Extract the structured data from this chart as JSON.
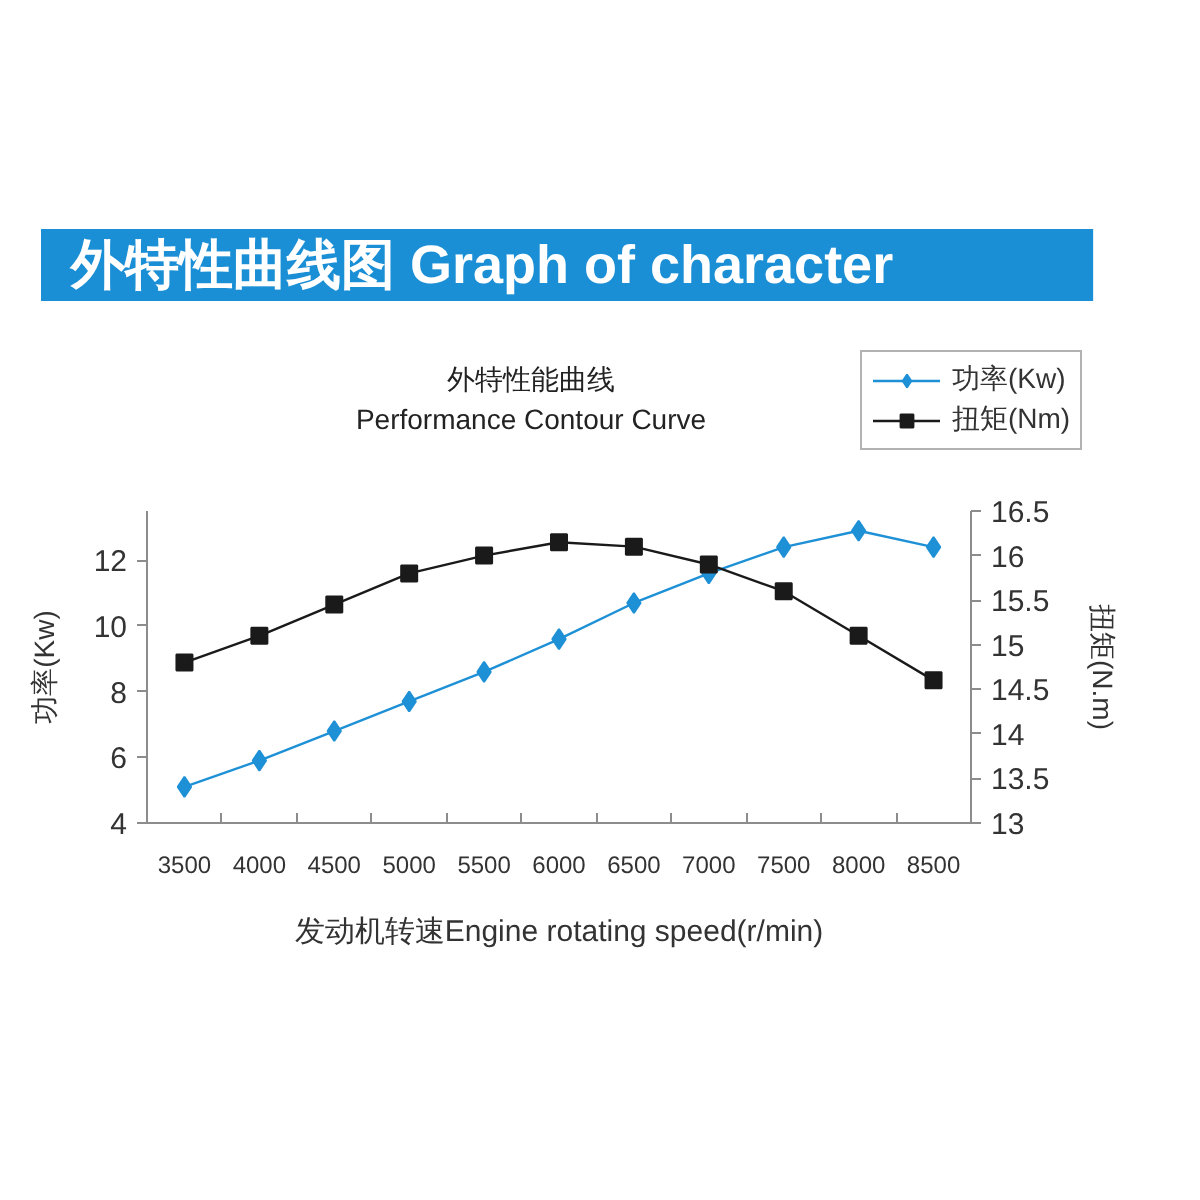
{
  "chart_data": {
    "type": "line",
    "title": "外特性曲线图 Graph of character",
    "subtitle": "外特性能曲线\nPerformance Contour Curve",
    "xlabel": "发动机转速Engine rotating speed(r/min)",
    "ylabel": "功率(Kw)",
    "y2label": "扭矩(N.m)",
    "categories": [
      "3500",
      "4000",
      "4500",
      "5000",
      "5500",
      "6000",
      "6500",
      "7000",
      "7500",
      "8000",
      "8500"
    ],
    "ylim": [
      4,
      13.5
    ],
    "yticks": [
      4,
      6,
      8,
      10,
      12
    ],
    "y2lim": [
      13,
      16.5
    ],
    "y2ticks": [
      13,
      13.5,
      14,
      14.5,
      15,
      15.5,
      16,
      16.5
    ],
    "legend": "top right",
    "line_style": "solid",
    "series": [
      {
        "name": "功率(Kw)",
        "color": "#1e90d6",
        "marker": "diamond",
        "values": [
          5.1,
          5.9,
          6.8,
          7.7,
          8.6,
          9.6,
          10.7,
          11.6,
          12.4,
          12.9,
          12.4
        ]
      },
      {
        "name": "扭矩(Nm)",
        "color": "#1a1a1a",
        "marker": "square",
        "axis": "y2",
        "values": [
          14.8,
          15.1,
          15.45,
          15.8,
          16.0,
          16.15,
          16.1,
          15.9,
          15.6,
          15.1,
          14.6
        ]
      }
    ]
  }
}
